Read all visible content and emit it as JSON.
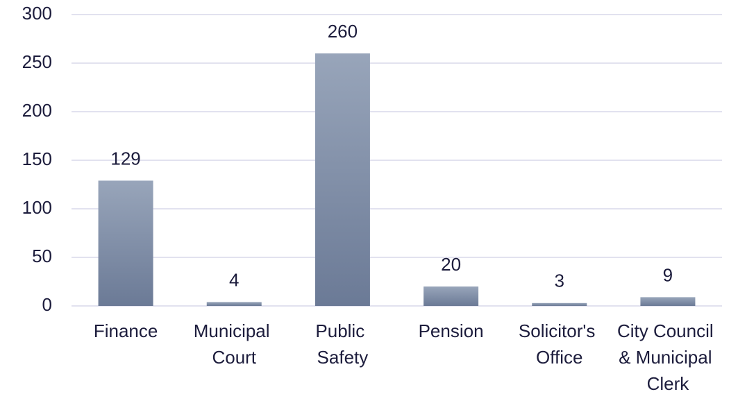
{
  "chart_data": {
    "type": "bar",
    "categories": [
      "Finance",
      "Municipal Court",
      "Public Safety",
      "Pension",
      "Solicitor's Office",
      "City Council & Municipal Clerk"
    ],
    "values": [
      129,
      4,
      260,
      20,
      3,
      9
    ],
    "color": [
      "#98a5ba",
      "#6b7a96"
    ],
    "ylim": [
      0,
      300
    ],
    "yticks": [
      0,
      50,
      100,
      150,
      200,
      250,
      300
    ],
    "grid": true
  }
}
